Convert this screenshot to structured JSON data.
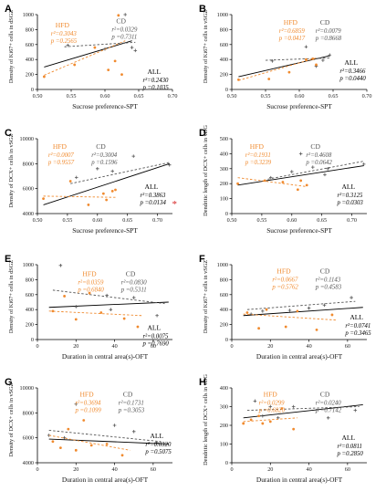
{
  "colors": {
    "hfd": "#f08a2e",
    "cd": "#555555",
    "all": "#000000",
    "star": "#d62728"
  },
  "chart_data": [
    {
      "panel": "A",
      "type": "scatter",
      "xlabel": "Sucrose preference-SPT",
      "ylabel": "Density of Ki67+ cells in dSGZ",
      "xlim": [
        0.5,
        0.7
      ],
      "ylim": [
        0,
        1000
      ],
      "xticks": [
        "0.50",
        "0.55",
        "0.60",
        "0.65",
        "0.70"
      ],
      "yticks": [
        "0",
        "200",
        "400",
        "600",
        "800",
        "1000"
      ],
      "groups": {
        "hfd": {
          "label": "HFD",
          "stat1": "r²=0.3043",
          "stat2": "p =0.2565",
          "points": [
            [
              0.51,
              170
            ],
            [
              0.555,
              330
            ],
            [
              0.585,
              560
            ],
            [
              0.605,
              260
            ],
            [
              0.615,
              380
            ],
            [
              0.62,
              990
            ],
            [
              0.625,
              200
            ]
          ],
          "fit": [
            [
              0.51,
              190
            ],
            [
              0.63,
              650
            ]
          ]
        },
        "cd": {
          "label": "CD",
          "stat1": "r²=0.0329",
          "stat2": "p =0.7311",
          "points": [
            [
              0.545,
              590
            ],
            [
              0.6,
              540
            ],
            [
              0.63,
              1000
            ],
            [
              0.64,
              560
            ],
            [
              0.645,
              520
            ]
          ],
          "fit": [
            [
              0.54,
              570
            ],
            [
              0.645,
              630
            ]
          ]
        },
        "all": {
          "label": "ALL",
          "stat1": "r²=0.2430",
          "stat2": "p =0.1035",
          "fit": [
            [
              0.51,
              300
            ],
            [
              0.64,
              650
            ]
          ]
        }
      }
    },
    {
      "panel": "B",
      "type": "scatter",
      "xlabel": "Sucrose preference-SPT",
      "ylabel": "Density of Ki67+ cells in vSGZ",
      "xlim": [
        0.5,
        0.7
      ],
      "ylim": [
        0,
        1000
      ],
      "xticks": [
        "0.50",
        "0.55",
        "0.60",
        "0.65",
        "0.70"
      ],
      "yticks": [
        "0",
        "200",
        "400",
        "600",
        "800",
        "1000"
      ],
      "groups": {
        "hfd": {
          "label": "HFD",
          "stat1": "r²=0.6859",
          "stat2": "p =0.0417",
          "points": [
            [
              0.51,
              130
            ],
            [
              0.555,
              140
            ],
            [
              0.585,
              230
            ],
            [
              0.61,
              400
            ],
            [
              0.62,
              410
            ],
            [
              0.625,
              330
            ]
          ],
          "fit": [
            [
              0.51,
              120
            ],
            [
              0.625,
              420
            ]
          ]
        },
        "cd": {
          "label": "CD",
          "stat1": "r²=0.0079",
          "stat2": "p =0.8668",
          "points": [
            [
              0.56,
              380
            ],
            [
              0.61,
              570
            ],
            [
              0.625,
              310
            ],
            [
              0.635,
              390
            ],
            [
              0.645,
              460
            ]
          ],
          "fit": [
            [
              0.55,
              390
            ],
            [
              0.645,
              420
            ]
          ]
        },
        "all": {
          "label": "ALL",
          "stat1": "r²=0.3466",
          "stat2": "p =0.0440",
          "fit": [
            [
              0.51,
              170
            ],
            [
              0.645,
              450
            ]
          ]
        }
      }
    },
    {
      "panel": "C",
      "type": "scatter",
      "xlabel": "Sucrose preference-SPT",
      "ylabel": "Density of DCX+ cells in vSGZ",
      "xlim": [
        0.5,
        0.725
      ],
      "ylim": [
        4000,
        10000
      ],
      "xticks": [
        "0.50",
        "0.55",
        "0.60",
        "0.65",
        "0.70"
      ],
      "yticks": [
        "4000",
        "6000",
        "8000",
        "10000"
      ],
      "groups": {
        "hfd": {
          "label": "HFD",
          "stat1": "r²=0.0007",
          "stat2": "p =0.9557",
          "points": [
            [
              0.51,
              5200
            ],
            [
              0.555,
              6600
            ],
            [
              0.585,
              4700
            ],
            [
              0.61,
              5600
            ],
            [
              0.615,
              5100
            ],
            [
              0.625,
              5800
            ],
            [
              0.63,
              5900
            ]
          ],
          "fit": [
            [
              0.51,
              5400
            ],
            [
              0.63,
              5300
            ]
          ]
        },
        "cd": {
          "label": "CD",
          "stat1": "r²=0.3004",
          "stat2": "p =0.1596",
          "points": [
            [
              0.565,
              6900
            ],
            [
              0.6,
              7600
            ],
            [
              0.625,
              7400
            ],
            [
              0.66,
              8600
            ],
            [
              0.72,
              7900
            ]
          ],
          "fit": [
            [
              0.555,
              6400
            ],
            [
              0.72,
              8100
            ]
          ]
        },
        "all": {
          "label": "ALL",
          "stat1": "r²=0.3863",
          "stat2": "p =0.0134",
          "sig": "*",
          "fit": [
            [
              0.51,
              4700
            ],
            [
              0.72,
              8000
            ]
          ]
        }
      }
    },
    {
      "panel": "D",
      "type": "scatter",
      "xlabel": "Sucrose preference-SPT",
      "ylabel": "Dendritic length of DCX+ cells in vDG",
      "xlim": [
        0.5,
        0.725
      ],
      "ylim": [
        0,
        500
      ],
      "xticks": [
        "0.50",
        "0.55",
        "0.60",
        "0.65",
        "0.70"
      ],
      "yticks": [
        "0",
        "100",
        "200",
        "300",
        "400",
        "500"
      ],
      "groups": {
        "hfd": {
          "label": "HFD",
          "stat1": "r²=0.1931",
          "stat2": "p =0.3239",
          "points": [
            [
              0.51,
              200
            ],
            [
              0.555,
              220
            ],
            [
              0.585,
              210
            ],
            [
              0.61,
              160
            ],
            [
              0.615,
              220
            ],
            [
              0.625,
              190
            ]
          ],
          "fit": [
            [
              0.51,
              240
            ],
            [
              0.625,
              180
            ]
          ]
        },
        "cd": {
          "label": "CD",
          "stat1": "r²=0.4608",
          "stat2": "p =0.0642",
          "points": [
            [
              0.565,
              240
            ],
            [
              0.6,
              280
            ],
            [
              0.615,
              400
            ],
            [
              0.635,
              310
            ],
            [
              0.655,
              260
            ],
            [
              0.66,
              300
            ],
            [
              0.72,
              330
            ]
          ],
          "fit": [
            [
              0.56,
              230
            ],
            [
              0.72,
              350
            ]
          ]
        },
        "all": {
          "label": "ALL",
          "stat1": "r²=0.3125",
          "stat2": "p =0.0303",
          "fit": [
            [
              0.51,
              190
            ],
            [
              0.72,
              320
            ]
          ]
        }
      }
    },
    {
      "panel": "E",
      "type": "scatter",
      "xlabel": "Duration in central area(s)-OFT",
      "ylabel": "Density of Ki67+ cells in dSGZ",
      "xlim": [
        0,
        70
      ],
      "ylim": [
        0,
        1000
      ],
      "xticks": [
        "0",
        "20",
        "40",
        "60"
      ],
      "yticks": [
        "0",
        "200",
        "400",
        "600",
        "800",
        "1000"
      ],
      "groups": {
        "hfd": {
          "label": "HFD",
          "stat1": "r²=0.0359",
          "stat2": "p =0.6840",
          "points": [
            [
              8,
              380
            ],
            [
              14,
              580
            ],
            [
              20,
              270
            ],
            [
              27,
              620
            ],
            [
              33,
              360
            ],
            [
              45,
              280
            ],
            [
              52,
              170
            ]
          ],
          "fit": [
            [
              6,
              380
            ],
            [
              54,
              320
            ]
          ]
        },
        "cd": {
          "label": "CD",
          "stat1": "r²=0.0830",
          "stat2": "p =0.5311",
          "points": [
            [
              12,
              990
            ],
            [
              20,
              440
            ],
            [
              36,
              590
            ],
            [
              38,
              400
            ],
            [
              50,
              560
            ],
            [
              62,
              320
            ]
          ],
          "fit": [
            [
              8,
              660
            ],
            [
              66,
              480
            ]
          ]
        },
        "all": {
          "label": "ALL",
          "stat1": "r²=0.0075",
          "stat2": "p =0.7690",
          "fit": [
            [
              6,
              430
            ],
            [
              68,
              500
            ]
          ]
        }
      }
    },
    {
      "panel": "F",
      "type": "scatter",
      "xlabel": "Duration in central area(s)-OFT",
      "ylabel": "Density of Ki67+ cells in vSGZ",
      "xlim": [
        0,
        70
      ],
      "ylim": [
        0,
        1000
      ],
      "xticks": [
        "0",
        "20",
        "40",
        "60"
      ],
      "yticks": [
        "0",
        "200",
        "400",
        "600",
        "800",
        "1000"
      ],
      "groups": {
        "hfd": {
          "label": "HFD",
          "stat1": "r²=0.0667",
          "stat2": "p =0.5762",
          "points": [
            [
              8,
              360
            ],
            [
              14,
              150
            ],
            [
              18,
              400
            ],
            [
              28,
              170
            ],
            [
              34,
              380
            ],
            [
              44,
              130
            ],
            [
              52,
              330
            ]
          ],
          "fit": [
            [
              6,
              340
            ],
            [
              54,
              260
            ]
          ]
        },
        "cd": {
          "label": "CD",
          "stat1": "r²=0.1143",
          "stat2": "p =0.4583",
          "points": [
            [
              10,
              340
            ],
            [
              16,
              380
            ],
            [
              30,
              390
            ],
            [
              40,
              420
            ],
            [
              48,
              460
            ],
            [
              62,
              560
            ]
          ],
          "fit": [
            [
              8,
              400
            ],
            [
              64,
              510
            ]
          ]
        },
        "all": {
          "label": "ALL",
          "stat1": "r²=0.0741",
          "stat2": "p =0.3465",
          "fit": [
            [
              6,
              320
            ],
            [
              68,
              430
            ]
          ]
        }
      }
    },
    {
      "panel": "G",
      "type": "scatter",
      "xlabel": "Duration in central area(s)-OFT",
      "ylabel": "Density of DCX+ cells in vSGZ",
      "xlim": [
        0,
        70
      ],
      "ylim": [
        4000,
        10000
      ],
      "xticks": [
        "0",
        "20",
        "40",
        "60"
      ],
      "yticks": [
        "4000",
        "6000",
        "8000",
        "10000"
      ],
      "groups": {
        "hfd": {
          "label": "HFD",
          "stat1": "r²=0.3694",
          "stat2": "p =0.1099",
          "points": [
            [
              8,
              5700
            ],
            [
              12,
              5200
            ],
            [
              16,
              6700
            ],
            [
              20,
              5000
            ],
            [
              24,
              7400
            ],
            [
              28,
              5400
            ],
            [
              36,
              5500
            ],
            [
              44,
              4600
            ]
          ],
          "fit": [
            [
              6,
              6200
            ],
            [
              48,
              5000
            ]
          ]
        },
        "cd": {
          "label": "CD",
          "stat1": "r²=0.1731",
          "stat2": "p =0.3053",
          "points": [
            [
              6,
              6200
            ],
            [
              14,
              6000
            ],
            [
              20,
              8700
            ],
            [
              40,
              7000
            ],
            [
              50,
              6500
            ],
            [
              62,
              5600
            ]
          ],
          "fit": [
            [
              6,
              6600
            ],
            [
              64,
              5700
            ]
          ]
        },
        "all": {
          "label": "ALL",
          "stat1": "r²=0.0320",
          "stat2": "p =0.5075",
          "fit": [
            [
              6,
              5900
            ],
            [
              68,
              5500
            ]
          ]
        }
      }
    },
    {
      "panel": "H",
      "type": "scatter",
      "xlabel": "Duration in central area(s)-OFT",
      "ylabel": "Dendritic length of DCX+ cells in vDG",
      "xlim": [
        0,
        70
      ],
      "ylim": [
        0,
        400
      ],
      "xticks": [
        "0",
        "20",
        "40",
        "60"
      ],
      "yticks": [
        "0",
        "100",
        "200",
        "300",
        "400"
      ],
      "groups": {
        "hfd": {
          "label": "HFD",
          "stat1": "r²=0.0299",
          "stat2": "p =0.6820",
          "points": [
            [
              6,
              210
            ],
            [
              10,
              230
            ],
            [
              14,
              250
            ],
            [
              16,
              210
            ],
            [
              20,
              220
            ],
            [
              26,
              290
            ],
            [
              32,
              180
            ]
          ],
          "fit": [
            [
              6,
              220
            ],
            [
              34,
              240
            ]
          ]
        },
        "cd": {
          "label": "CD",
          "stat1": "r²=0.0240",
          "stat2": "p =0.7142",
          "points": [
            [
              12,
              330
            ],
            [
              16,
              250
            ],
            [
              20,
              300
            ],
            [
              24,
              240
            ],
            [
              32,
              300
            ],
            [
              50,
              240
            ],
            [
              64,
              280
            ]
          ],
          "fit": [
            [
              8,
              280
            ],
            [
              66,
              300
            ]
          ]
        },
        "all": {
          "label": "ALL",
          "stat1": "r²=0.0811",
          "stat2": "p =0.2850",
          "fit": [
            [
              6,
              240
            ],
            [
              68,
              310
            ]
          ]
        }
      }
    }
  ]
}
